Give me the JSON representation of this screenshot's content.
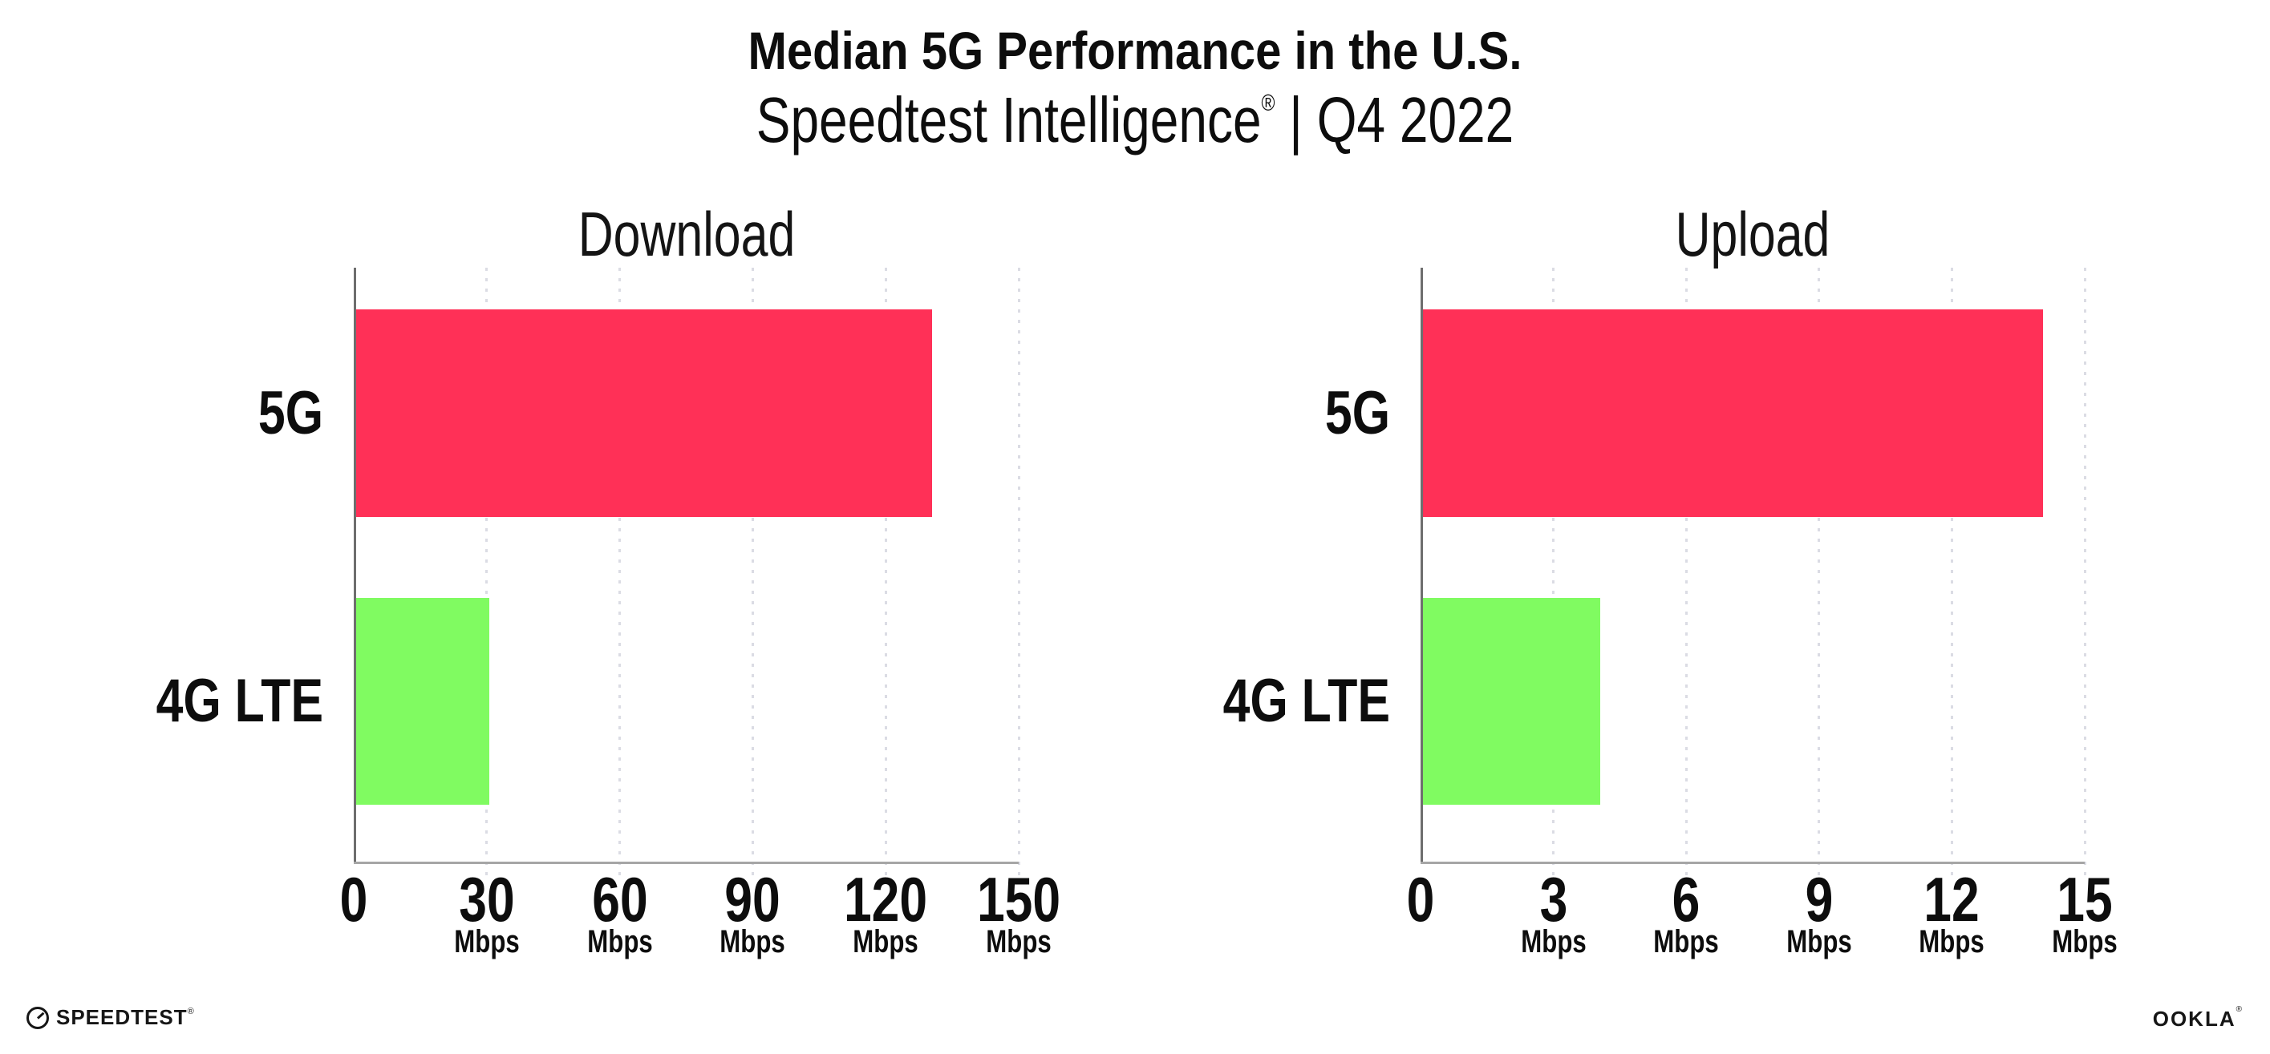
{
  "header": {
    "title": "Median 5G Performance in the U.S.",
    "subtitle_brand": "Speedtest Intelligence",
    "subtitle_reg": "®",
    "subtitle_rest": " | Q4 2022"
  },
  "footer": {
    "speedtest_label": "SPEEDTEST",
    "speedtest_reg": "®",
    "ookla_label": "OOKLA",
    "ookla_reg": "®"
  },
  "colors": {
    "bar_5g": "#FF3057",
    "bar_4g": "#80FB61",
    "axis_y": "#6E6E6E",
    "axis_x": "#A6A6A6",
    "gridline": "#DBDCE4",
    "text": "#0D0D0D"
  },
  "chart_data": [
    {
      "type": "bar",
      "orientation": "horizontal",
      "title": "Download",
      "categories": [
        "5G",
        "4G LTE"
      ],
      "values": [
        130,
        30
      ],
      "unit": "Mbps",
      "xlim": [
        0,
        150
      ],
      "xticks": [
        0,
        30,
        60,
        90,
        120,
        150
      ],
      "grid": "dotted-vertical",
      "legend": "none"
    },
    {
      "type": "bar",
      "orientation": "horizontal",
      "title": "Upload",
      "categories": [
        "5G",
        "4G LTE"
      ],
      "values": [
        14,
        4
      ],
      "unit": "Mbps",
      "xlim": [
        0,
        15
      ],
      "xticks": [
        0,
        3,
        6,
        9,
        12,
        15
      ],
      "grid": "dotted-vertical",
      "legend": "none"
    }
  ]
}
